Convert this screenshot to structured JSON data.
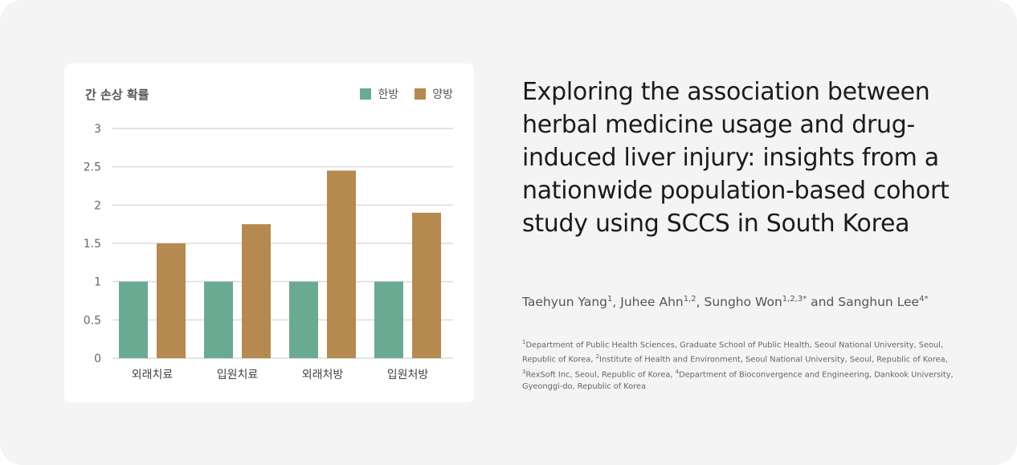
{
  "chart_data": {
    "type": "bar",
    "title": "간 손상 확률",
    "categories": [
      "외래치료",
      "입원치료",
      "외래처방",
      "입원처방"
    ],
    "series": [
      {
        "name": "한방",
        "values": [
          1,
          1,
          1,
          1
        ],
        "color": "#6aaa93"
      },
      {
        "name": "양방",
        "values": [
          1.5,
          1.75,
          2.45,
          1.9
        ],
        "color": "#b5894f"
      }
    ],
    "yticks": [
      "0",
      "0.5",
      "1",
      "1.5",
      "2",
      "2.5",
      "3"
    ],
    "ylim": [
      0,
      3
    ],
    "grid": true,
    "legend": "top-right",
    "xlabel": "",
    "ylabel": ""
  },
  "paper": {
    "title": "Exploring the association between herbal medicine usage and drug-induced liver injury: insights from a nationwide population-based cohort study using SCCS in South Korea",
    "authors": [
      {
        "name": "Taehyun Yang",
        "sup": "1",
        "sep": ", "
      },
      {
        "name": "Juhee Ahn",
        "sup": "1,2",
        "sep": ", "
      },
      {
        "name": "Sungho Won",
        "sup": "1,2,3*",
        "sep": " and "
      },
      {
        "name": "Sanghun Lee",
        "sup": "4*",
        "sep": ""
      }
    ],
    "affiliations": [
      {
        "sup": "1",
        "text": "Department of Public Health Sciences, Graduate School of Public Health, Seoul National University, Seoul, Republic of Korea, "
      },
      {
        "sup": "2",
        "text": "Institute of Health and Environment, Seoul National University, Seoul, Republic of Korea, "
      },
      {
        "sup": "3",
        "text": "RexSoft Inc, Seoul, Republic of Korea, "
      },
      {
        "sup": "4",
        "text": "Department of Bioconvergence and Engineering, Dankook University, Gyeonggi-do, Republic of Korea"
      }
    ]
  }
}
